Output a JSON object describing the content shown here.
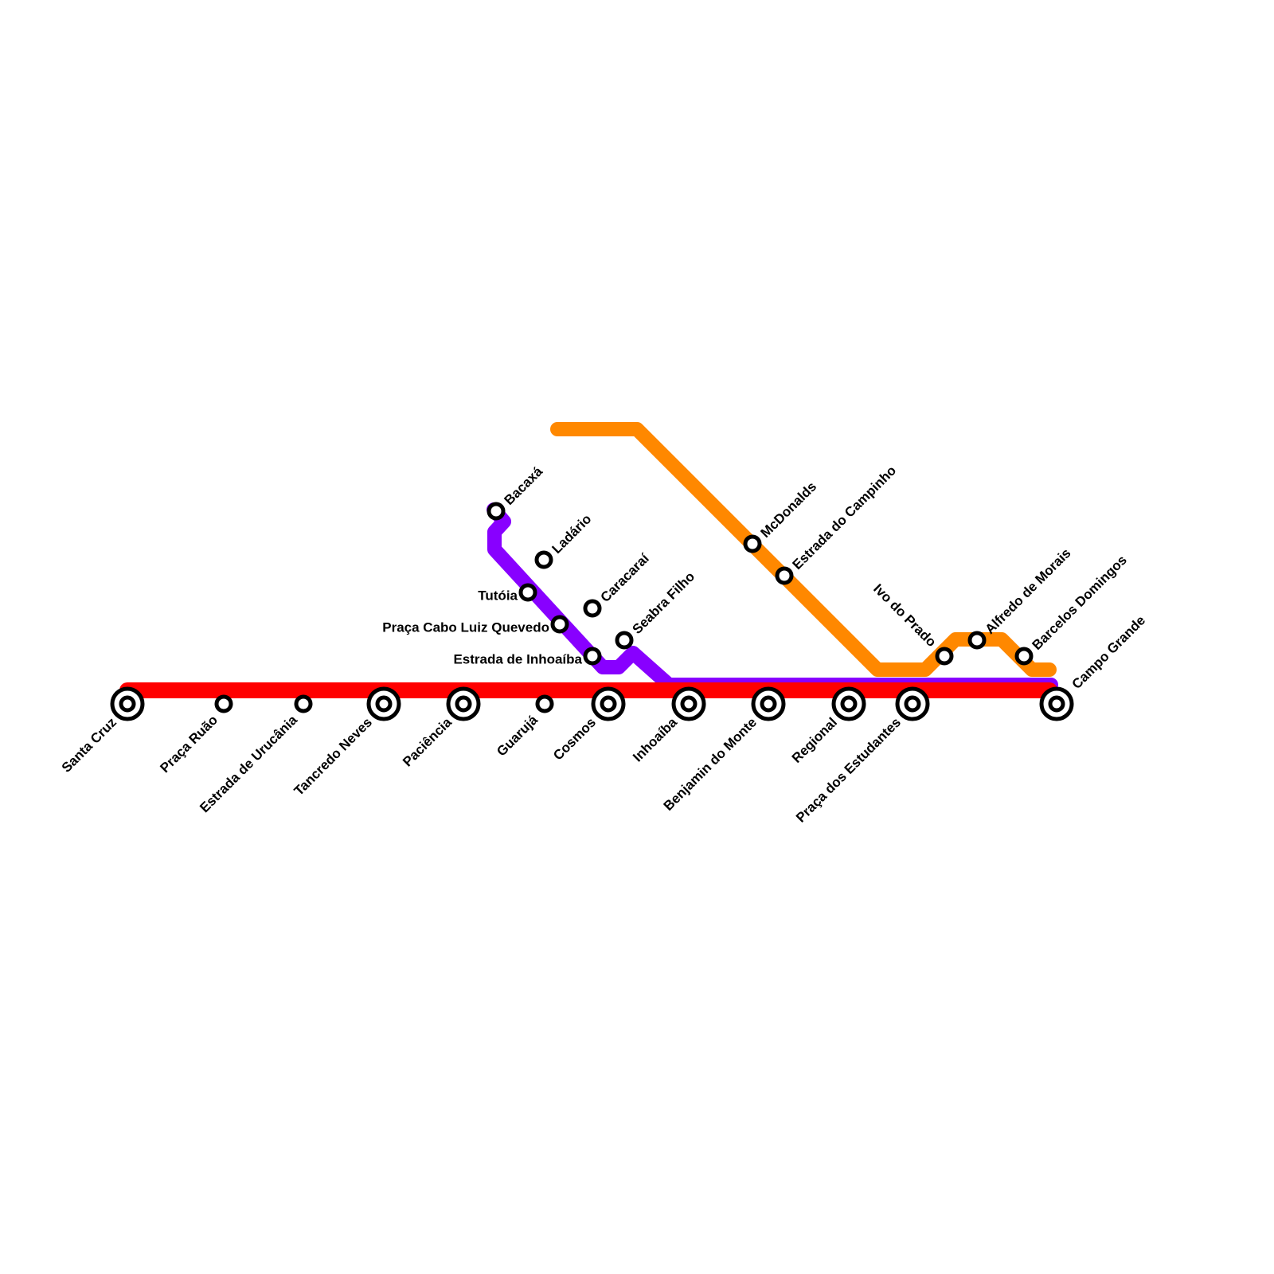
{
  "colors": {
    "red_line": "#ff0000",
    "purple_line": "#8800ff",
    "orange_line": "#ff8800",
    "station_outline": "#000000",
    "station_fill": "#ffffff",
    "label": "#000000",
    "background": "#ffffff"
  },
  "lines": [
    {
      "id": "red",
      "color_key": "red_line"
    },
    {
      "id": "purple",
      "color_key": "purple_line"
    },
    {
      "id": "orange",
      "color_key": "orange_line"
    }
  ],
  "stations": [
    {
      "name": "Santa Cruz",
      "type": "interchange",
      "lines": [
        "red"
      ]
    },
    {
      "name": "Praça Ruão",
      "type": "stop",
      "lines": [
        "red"
      ]
    },
    {
      "name": "Estrada de Urucânia",
      "type": "stop",
      "lines": [
        "red"
      ]
    },
    {
      "name": "Tancredo Neves",
      "type": "interchange",
      "lines": [
        "red"
      ]
    },
    {
      "name": "Paciência",
      "type": "interchange",
      "lines": [
        "red"
      ]
    },
    {
      "name": "Guarujá",
      "type": "stop",
      "lines": [
        "red"
      ]
    },
    {
      "name": "Cosmos",
      "type": "interchange",
      "lines": [
        "red"
      ]
    },
    {
      "name": "Inhoaíba",
      "type": "interchange",
      "lines": [
        "red",
        "purple"
      ]
    },
    {
      "name": "Benjamin do Monte",
      "type": "interchange",
      "lines": [
        "red",
        "purple"
      ]
    },
    {
      "name": "Regional",
      "type": "interchange",
      "lines": [
        "red",
        "purple"
      ]
    },
    {
      "name": "Praça dos Estudantes",
      "type": "interchange",
      "lines": [
        "red",
        "purple"
      ]
    },
    {
      "name": "Campo Grande",
      "type": "interchange",
      "lines": [
        "red",
        "purple",
        "orange"
      ]
    },
    {
      "name": "Bacaxá",
      "type": "stop",
      "lines": [
        "purple"
      ]
    },
    {
      "name": "Ladário",
      "type": "stop",
      "lines": [
        "purple"
      ]
    },
    {
      "name": "Caracaraí",
      "type": "stop",
      "lines": [
        "purple"
      ]
    },
    {
      "name": "Seabra Filho",
      "type": "stop",
      "lines": [
        "purple"
      ]
    },
    {
      "name": "Tutóia",
      "type": "stop",
      "lines": [
        "purple"
      ]
    },
    {
      "name": "Praça Cabo Luiz Quevedo",
      "type": "stop",
      "lines": [
        "purple"
      ]
    },
    {
      "name": "Estrada de Inhoaíba",
      "type": "stop",
      "lines": [
        "purple"
      ]
    },
    {
      "name": "McDonalds",
      "type": "stop",
      "lines": [
        "orange"
      ]
    },
    {
      "name": "Estrada do Campinho",
      "type": "stop",
      "lines": [
        "orange"
      ]
    },
    {
      "name": "Ivo do Prado",
      "type": "stop",
      "lines": [
        "orange"
      ]
    },
    {
      "name": "Alfredo de Morais",
      "type": "stop",
      "lines": [
        "orange"
      ]
    },
    {
      "name": "Barcelos Domingos",
      "type": "stop",
      "lines": [
        "orange"
      ]
    }
  ]
}
